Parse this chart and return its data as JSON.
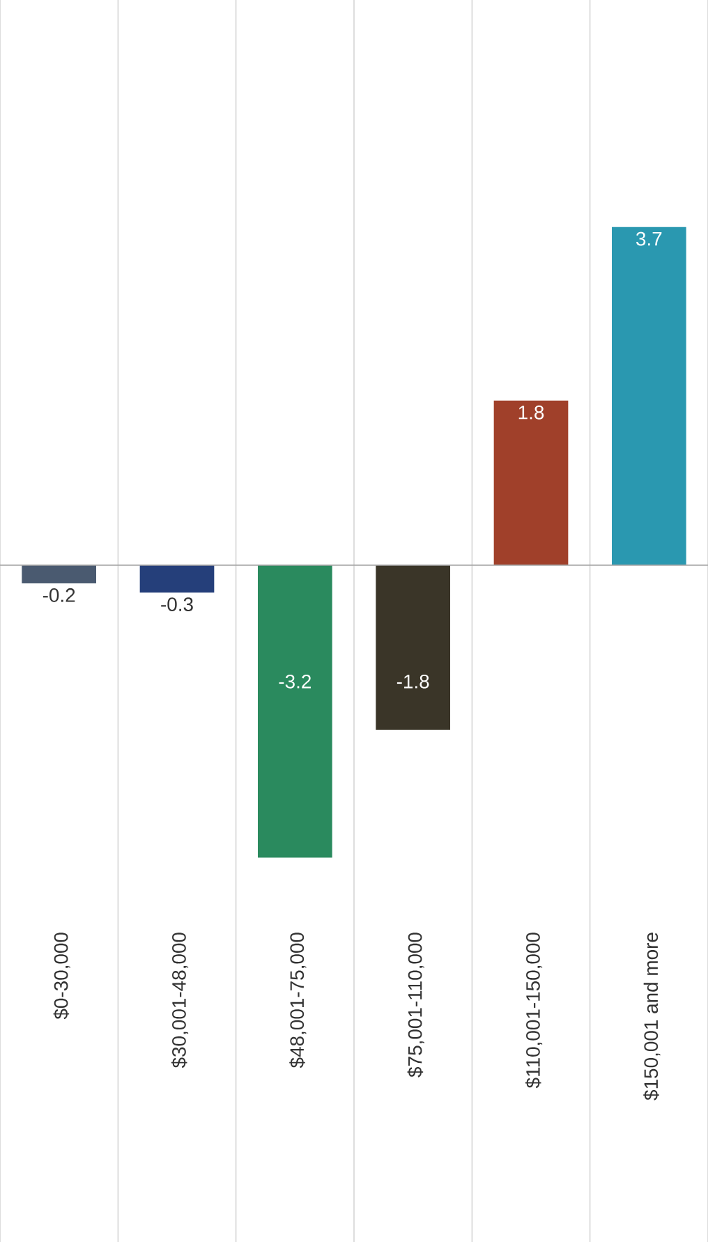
{
  "chart_data": {
    "type": "bar",
    "categories": [
      "$0-30,000",
      "$30,001-48,000",
      "$48,001-75,000",
      "$75,001-110,000",
      "$110,001-150,000",
      "$150,001 and more"
    ],
    "values": [
      -0.2,
      -0.3,
      -3.2,
      -1.8,
      1.8,
      3.7
    ],
    "colors": [
      "#4a5a70",
      "#253f7a",
      "#2a8a5e",
      "#3a3528",
      "#a0402a",
      "#2a98b0"
    ],
    "data_labels": true,
    "grid": "x"
  }
}
